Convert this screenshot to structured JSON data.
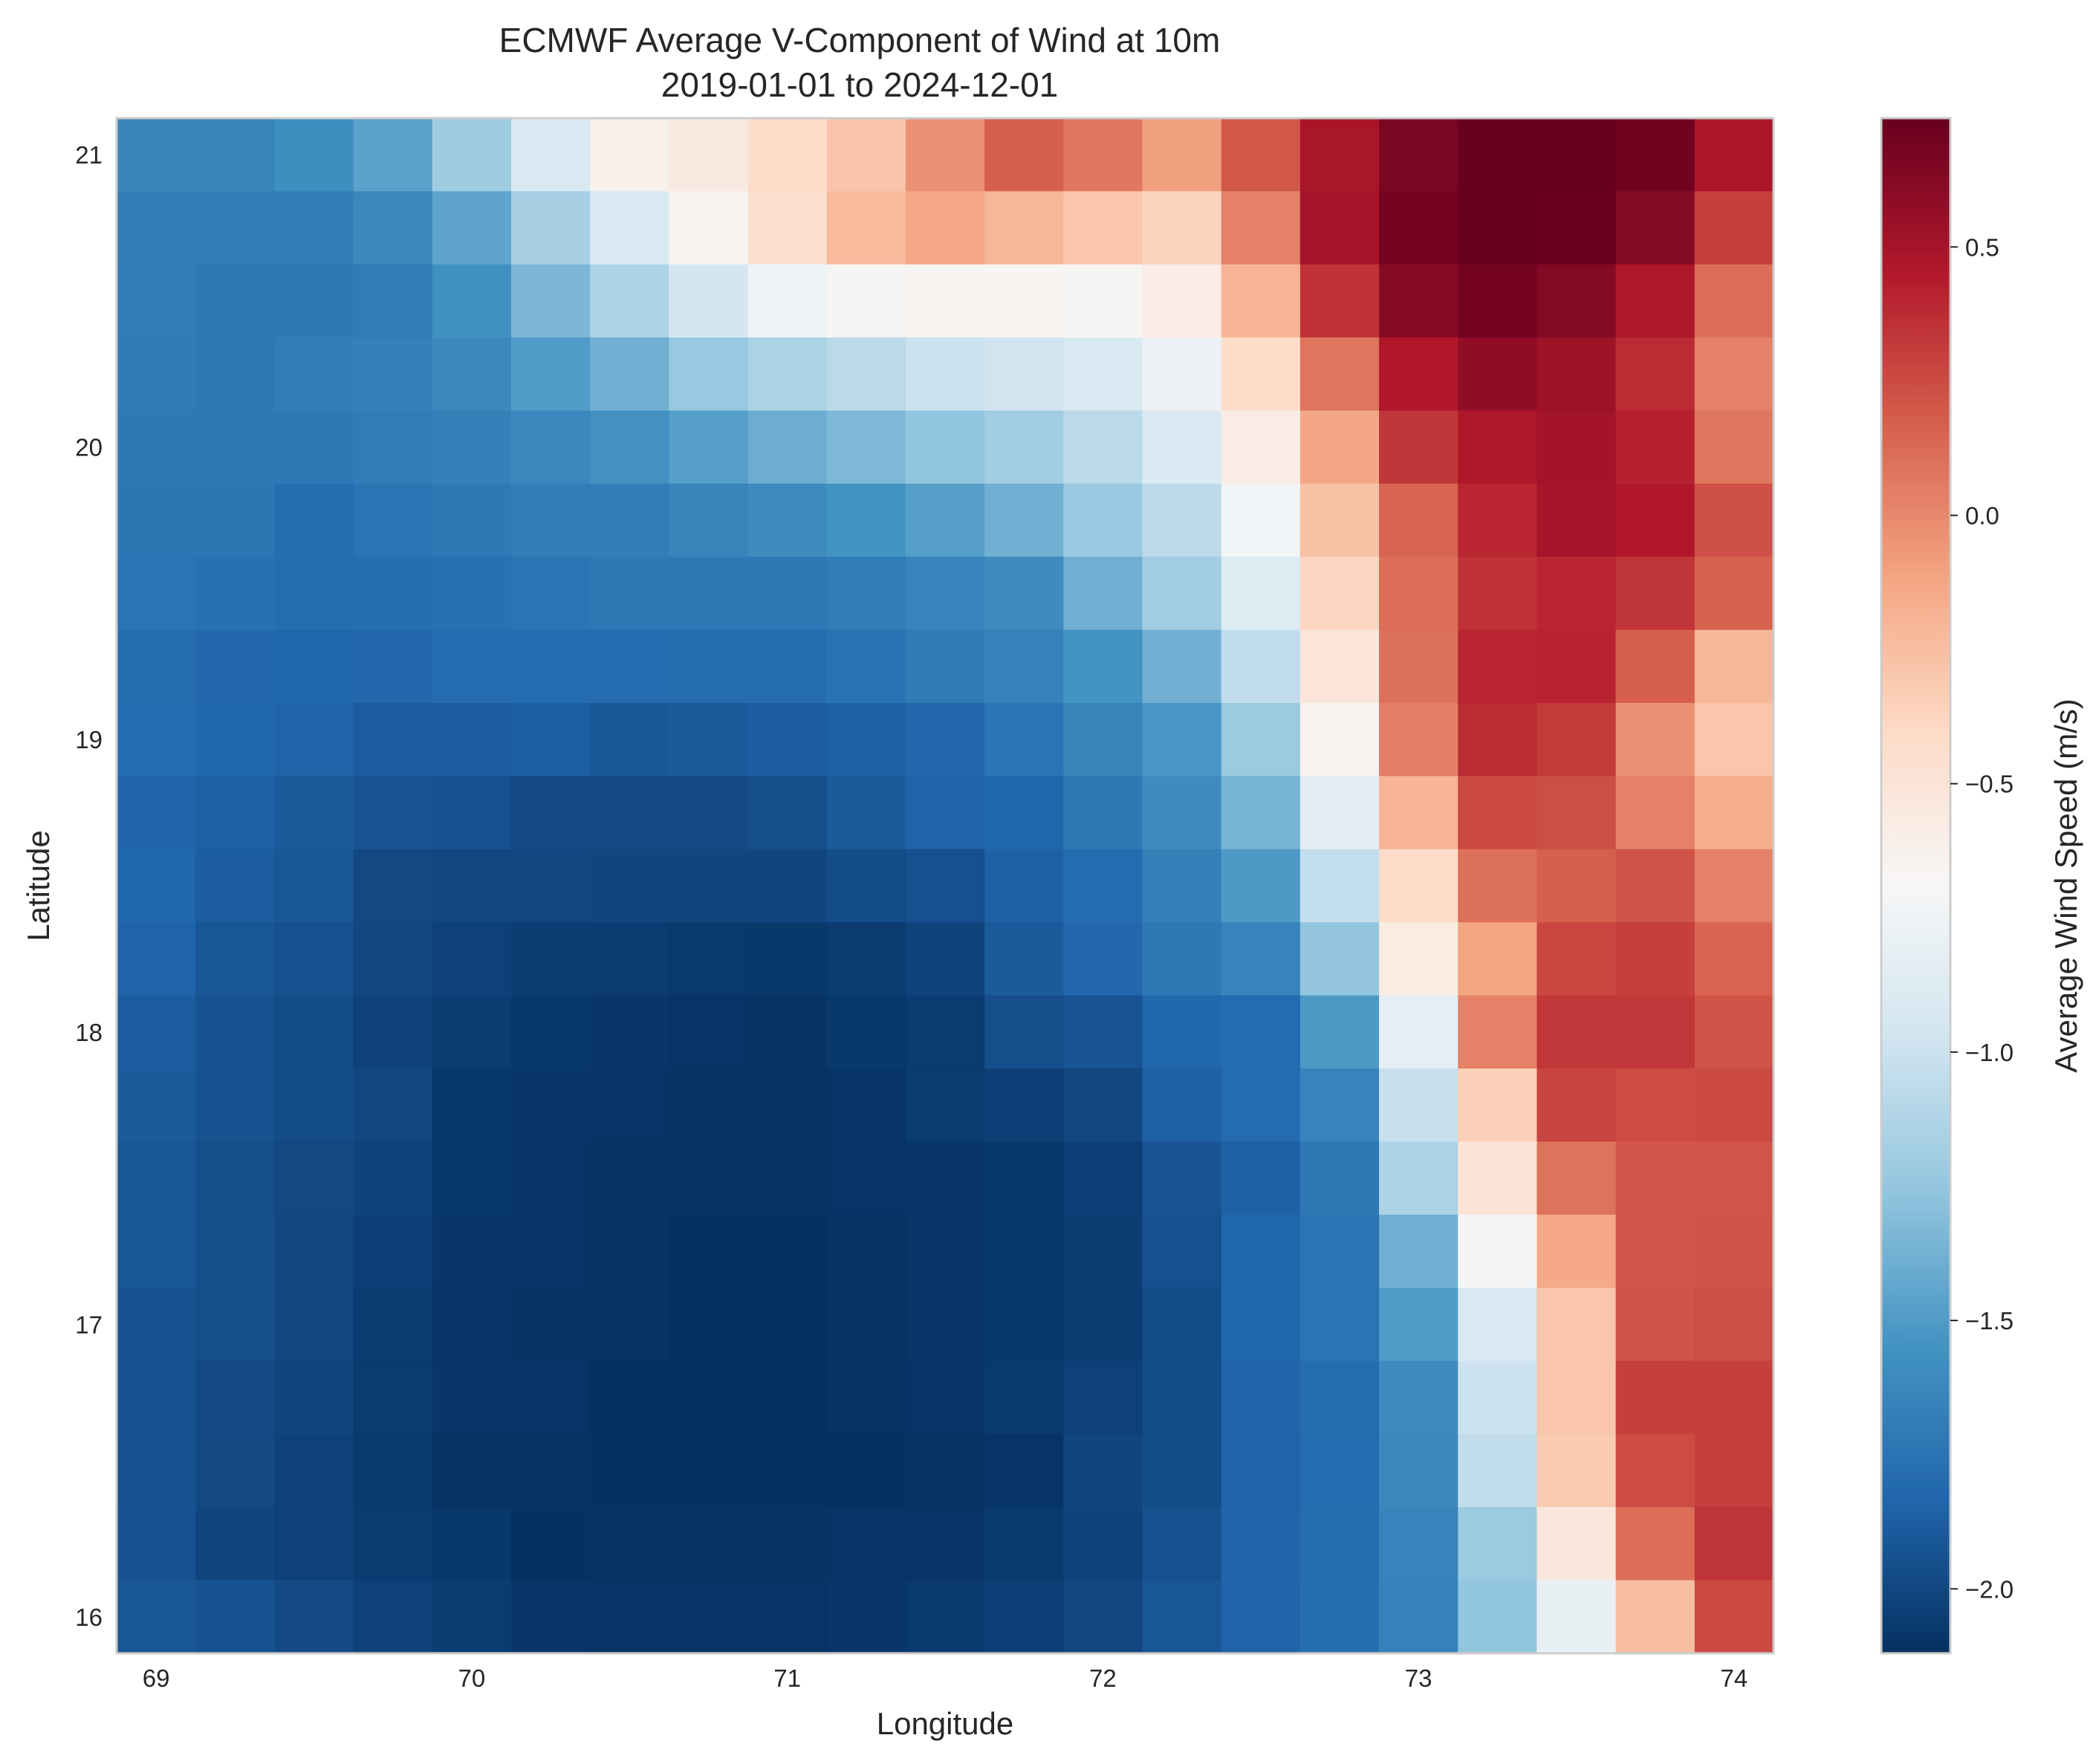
{
  "chart_data": {
    "type": "heatmap",
    "title": "ECMWF Average V-Component of Wind at 10m",
    "subtitle": "2019-01-01 to 2024-12-01",
    "xlabel": "Longitude",
    "ylabel": "Latitude",
    "colorbar_label": "Average Wind Speed (m/s)",
    "colormap": "RdBu_r",
    "x_ticks": [
      "69",
      "70",
      "71",
      "72",
      "73",
      "74"
    ],
    "y_ticks": [
      "16",
      "17",
      "18",
      "19",
      "20",
      "21"
    ],
    "colorbar_ticks": [
      "−2.0",
      "−1.5",
      "−1.0",
      "−0.5",
      "0.0",
      "0.5"
    ],
    "xlim": [
      68.875,
      74.125
    ],
    "ylim": [
      15.875,
      21.125
    ],
    "clim": [
      -2.12,
      0.74
    ],
    "grid": false,
    "lon": [
      69.0,
      69.25,
      69.5,
      69.75,
      70.0,
      70.25,
      70.5,
      70.75,
      71.0,
      71.25,
      71.5,
      71.75,
      72.0,
      72.25,
      72.5,
      72.75,
      73.0,
      73.25,
      73.5,
      73.75,
      74.0
    ],
    "lat": [
      21.0,
      20.75,
      20.5,
      20.25,
      20.0,
      19.75,
      19.5,
      19.25,
      19.0,
      18.75,
      18.5,
      18.25,
      18.0,
      17.75,
      17.5,
      17.25,
      17.0,
      16.75,
      16.5,
      16.25,
      16.0
    ],
    "values": [
      [
        -1.64,
        -1.64,
        -1.58,
        -1.46,
        -1.2,
        -0.92,
        -0.62,
        -0.55,
        -0.42,
        -0.28,
        -0.04,
        0.17,
        0.07,
        -0.1,
        0.2,
        0.49,
        0.66,
        0.74,
        0.74,
        0.7,
        0.48
      ],
      [
        -1.68,
        -1.69,
        -1.68,
        -1.62,
        -1.45,
        -1.17,
        -0.9,
        -0.66,
        -0.45,
        -0.23,
        -0.14,
        -0.21,
        -0.3,
        -0.36,
        0.03,
        0.5,
        0.69,
        0.74,
        0.73,
        0.63,
        0.3
      ],
      [
        -1.7,
        -1.72,
        -1.72,
        -1.7,
        -1.57,
        -1.34,
        -1.14,
        -0.95,
        -0.76,
        -0.67,
        -0.66,
        -0.66,
        -0.67,
        -0.58,
        -0.2,
        0.35,
        0.62,
        0.69,
        0.63,
        0.47,
        0.11
      ],
      [
        -1.71,
        -1.72,
        -1.69,
        -1.67,
        -1.62,
        -1.5,
        -1.38,
        -1.23,
        -1.15,
        -1.08,
        -1.0,
        -0.98,
        -0.92,
        -0.78,
        -0.42,
        0.08,
        0.46,
        0.58,
        0.53,
        0.38,
        0.03
      ],
      [
        -1.72,
        -1.72,
        -1.72,
        -1.7,
        -1.67,
        -1.62,
        -1.56,
        -1.48,
        -1.4,
        -1.33,
        -1.26,
        -1.19,
        -1.08,
        -0.9,
        -0.58,
        -0.13,
        0.34,
        0.47,
        0.51,
        0.42,
        0.07
      ],
      [
        -1.73,
        -1.73,
        -1.79,
        -1.75,
        -1.72,
        -1.68,
        -1.68,
        -1.64,
        -1.6,
        -1.55,
        -1.48,
        -1.38,
        -1.23,
        -1.07,
        -0.74,
        -0.26,
        0.15,
        0.4,
        0.5,
        0.46,
        0.23
      ],
      [
        -1.75,
        -1.77,
        -1.79,
        -1.78,
        -1.77,
        -1.74,
        -1.72,
        -1.72,
        -1.72,
        -1.69,
        -1.65,
        -1.6,
        -1.39,
        -1.19,
        -0.88,
        -0.38,
        0.11,
        0.35,
        0.4,
        0.34,
        0.16
      ],
      [
        -1.79,
        -1.82,
        -1.83,
        -1.82,
        -1.8,
        -1.8,
        -1.8,
        -1.79,
        -1.79,
        -1.76,
        -1.71,
        -1.66,
        -1.55,
        -1.38,
        -1.05,
        -0.51,
        0.1,
        0.4,
        0.41,
        0.17,
        -0.21
      ],
      [
        -1.8,
        -1.83,
        -1.85,
        -1.89,
        -1.89,
        -1.87,
        -1.91,
        -1.9,
        -1.88,
        -1.86,
        -1.82,
        -1.74,
        -1.64,
        -1.53,
        -1.22,
        -0.65,
        0.04,
        0.38,
        0.32,
        -0.04,
        -0.29
      ],
      [
        -1.84,
        -1.86,
        -1.9,
        -1.93,
        -1.95,
        -1.98,
        -1.98,
        -1.98,
        -1.96,
        -1.9,
        -1.85,
        -1.83,
        -1.72,
        -1.6,
        -1.36,
        -0.85,
        -0.2,
        0.26,
        0.24,
        0.03,
        -0.16
      ],
      [
        -1.83,
        -1.88,
        -1.92,
        -1.99,
        -2.0,
        -2.0,
        -2.01,
        -2.01,
        -2.01,
        -1.97,
        -1.95,
        -1.86,
        -1.8,
        -1.67,
        -1.51,
        -1.04,
        -0.42,
        0.1,
        0.17,
        0.22,
        0.03
      ],
      [
        -1.85,
        -1.92,
        -1.95,
        -2.0,
        -2.03,
        -2.05,
        -2.06,
        -2.07,
        -2.08,
        -2.06,
        -2.02,
        -1.9,
        -1.82,
        -1.72,
        -1.65,
        -1.25,
        -0.57,
        -0.12,
        0.27,
        0.3,
        0.15
      ],
      [
        -1.89,
        -1.94,
        -1.97,
        -2.03,
        -2.05,
        -2.08,
        -2.09,
        -2.1,
        -2.11,
        -2.08,
        -2.06,
        -1.96,
        -1.93,
        -1.83,
        -1.8,
        -1.51,
        -0.83,
        0.03,
        0.33,
        0.33,
        0.22
      ],
      [
        -1.9,
        -1.94,
        -1.97,
        -2.0,
        -2.08,
        -2.09,
        -2.1,
        -2.11,
        -2.11,
        -2.1,
        -2.06,
        -2.04,
        -2.0,
        -1.86,
        -1.8,
        -1.65,
        -1.02,
        -0.34,
        0.28,
        0.25,
        0.26
      ],
      [
        -1.92,
        -1.96,
        -1.99,
        -2.02,
        -2.08,
        -2.1,
        -2.11,
        -2.11,
        -2.11,
        -2.1,
        -2.09,
        -2.08,
        -2.04,
        -1.93,
        -1.86,
        -1.72,
        -1.14,
        -0.5,
        0.09,
        0.21,
        0.21
      ],
      [
        -1.92,
        -1.96,
        -2.0,
        -2.04,
        -2.09,
        -2.1,
        -2.11,
        -2.12,
        -2.12,
        -2.11,
        -2.09,
        -2.08,
        -2.05,
        -1.95,
        -1.83,
        -1.75,
        -1.38,
        -0.72,
        -0.14,
        0.21,
        0.22
      ],
      [
        -1.94,
        -1.96,
        -2.0,
        -2.06,
        -2.1,
        -2.11,
        -2.11,
        -2.12,
        -2.12,
        -2.11,
        -2.09,
        -2.08,
        -2.05,
        -1.97,
        -1.83,
        -1.75,
        -1.5,
        -0.92,
        -0.29,
        0.22,
        0.24
      ],
      [
        -1.94,
        -1.98,
        -2.01,
        -2.06,
        -2.09,
        -2.1,
        -2.12,
        -2.12,
        -2.12,
        -2.11,
        -2.1,
        -2.07,
        -2.03,
        -1.97,
        -1.84,
        -1.79,
        -1.6,
        -1.0,
        -0.29,
        0.3,
        0.3
      ],
      [
        -1.95,
        -1.99,
        -2.03,
        -2.07,
        -2.11,
        -2.11,
        -2.12,
        -2.12,
        -2.12,
        -2.12,
        -2.11,
        -2.1,
        -2.01,
        -1.97,
        -1.84,
        -1.8,
        -1.62,
        -1.05,
        -0.32,
        0.25,
        0.3
      ],
      [
        -1.94,
        -2.01,
        -2.03,
        -2.06,
        -2.08,
        -2.12,
        -2.11,
        -2.11,
        -2.11,
        -2.1,
        -2.1,
        -2.07,
        -2.02,
        -1.95,
        -1.84,
        -1.79,
        -1.65,
        -1.22,
        -0.53,
        0.11,
        0.34
      ],
      [
        -1.92,
        -1.94,
        -1.98,
        -2.03,
        -2.06,
        -2.09,
        -2.1,
        -2.1,
        -2.1,
        -2.09,
        -2.07,
        -2.04,
        -2.0,
        -1.92,
        -1.85,
        -1.78,
        -1.66,
        -1.26,
        -0.8,
        -0.25,
        0.26
      ]
    ]
  }
}
